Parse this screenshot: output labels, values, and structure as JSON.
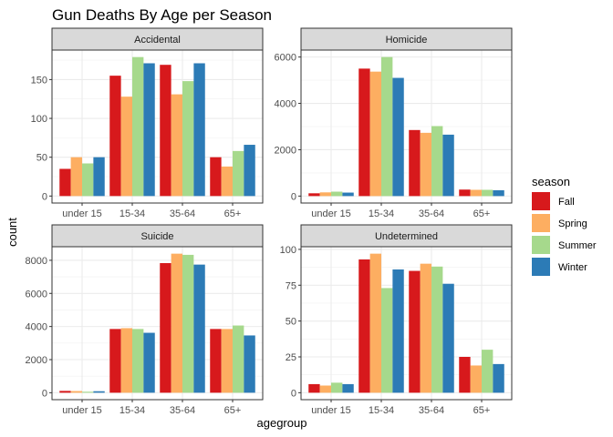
{
  "chart_data": {
    "type": "bar",
    "title": "Gun Deaths By Age per Season",
    "xlabel": "agegroup",
    "ylabel": "count",
    "categories": [
      "under 15",
      "15-34",
      "35-64",
      "65+"
    ],
    "legend": {
      "title": "season",
      "position": "right",
      "entries": [
        "Fall",
        "Spring",
        "Summer",
        "Winter"
      ]
    },
    "colors": {
      "Fall": "#d7191c",
      "Spring": "#fdae61",
      "Summer": "#a6d98c",
      "Winter": "#2c7bb6"
    },
    "grid": true,
    "facets": [
      {
        "label": "Accidental",
        "ylim": [
          -9,
          188
        ],
        "yticks": [
          0,
          50,
          100,
          150
        ],
        "series": [
          {
            "name": "Fall",
            "values": [
              35,
              155,
              169,
              50
            ]
          },
          {
            "name": "Spring",
            "values": [
              50,
              128,
              131,
              38
            ]
          },
          {
            "name": "Summer",
            "values": [
              42,
              179,
              148,
              58
            ]
          },
          {
            "name": "Winter",
            "values": [
              50,
              171,
              171,
              66
            ]
          }
        ]
      },
      {
        "label": "Homicide",
        "ylim": [
          -300,
          6300
        ],
        "yticks": [
          0,
          2000,
          4000,
          6000
        ],
        "series": [
          {
            "name": "Fall",
            "values": [
              120,
              5500,
              2850,
              280
            ]
          },
          {
            "name": "Spring",
            "values": [
              160,
              5370,
              2730,
              270
            ]
          },
          {
            "name": "Summer",
            "values": [
              190,
              6000,
              3020,
              270
            ]
          },
          {
            "name": "Winter",
            "values": [
              150,
              5100,
              2650,
              250
            ]
          }
        ]
      },
      {
        "label": "Suicide",
        "ylim": [
          -420,
          8820
        ],
        "yticks": [
          0,
          2000,
          4000,
          6000,
          8000
        ],
        "series": [
          {
            "name": "Fall",
            "values": [
              110,
              3850,
              7830,
              3850
            ]
          },
          {
            "name": "Spring",
            "values": [
              100,
              3900,
              8400,
              3850
            ]
          },
          {
            "name": "Summer",
            "values": [
              60,
              3850,
              8330,
              4060
            ]
          },
          {
            "name": "Winter",
            "values": [
              90,
              3620,
              7740,
              3460
            ]
          }
        ]
      },
      {
        "label": "Undetermined",
        "ylim": [
          -4.85,
          101.85
        ],
        "yticks": [
          0,
          25,
          50,
          75,
          100
        ],
        "series": [
          {
            "name": "Fall",
            "values": [
              6,
              93,
              85,
              25
            ]
          },
          {
            "name": "Spring",
            "values": [
              5,
              97,
              90,
              19
            ]
          },
          {
            "name": "Summer",
            "values": [
              7,
              73,
              88,
              30
            ]
          },
          {
            "name": "Winter",
            "values": [
              6,
              86,
              76,
              20
            ]
          }
        ]
      }
    ]
  }
}
